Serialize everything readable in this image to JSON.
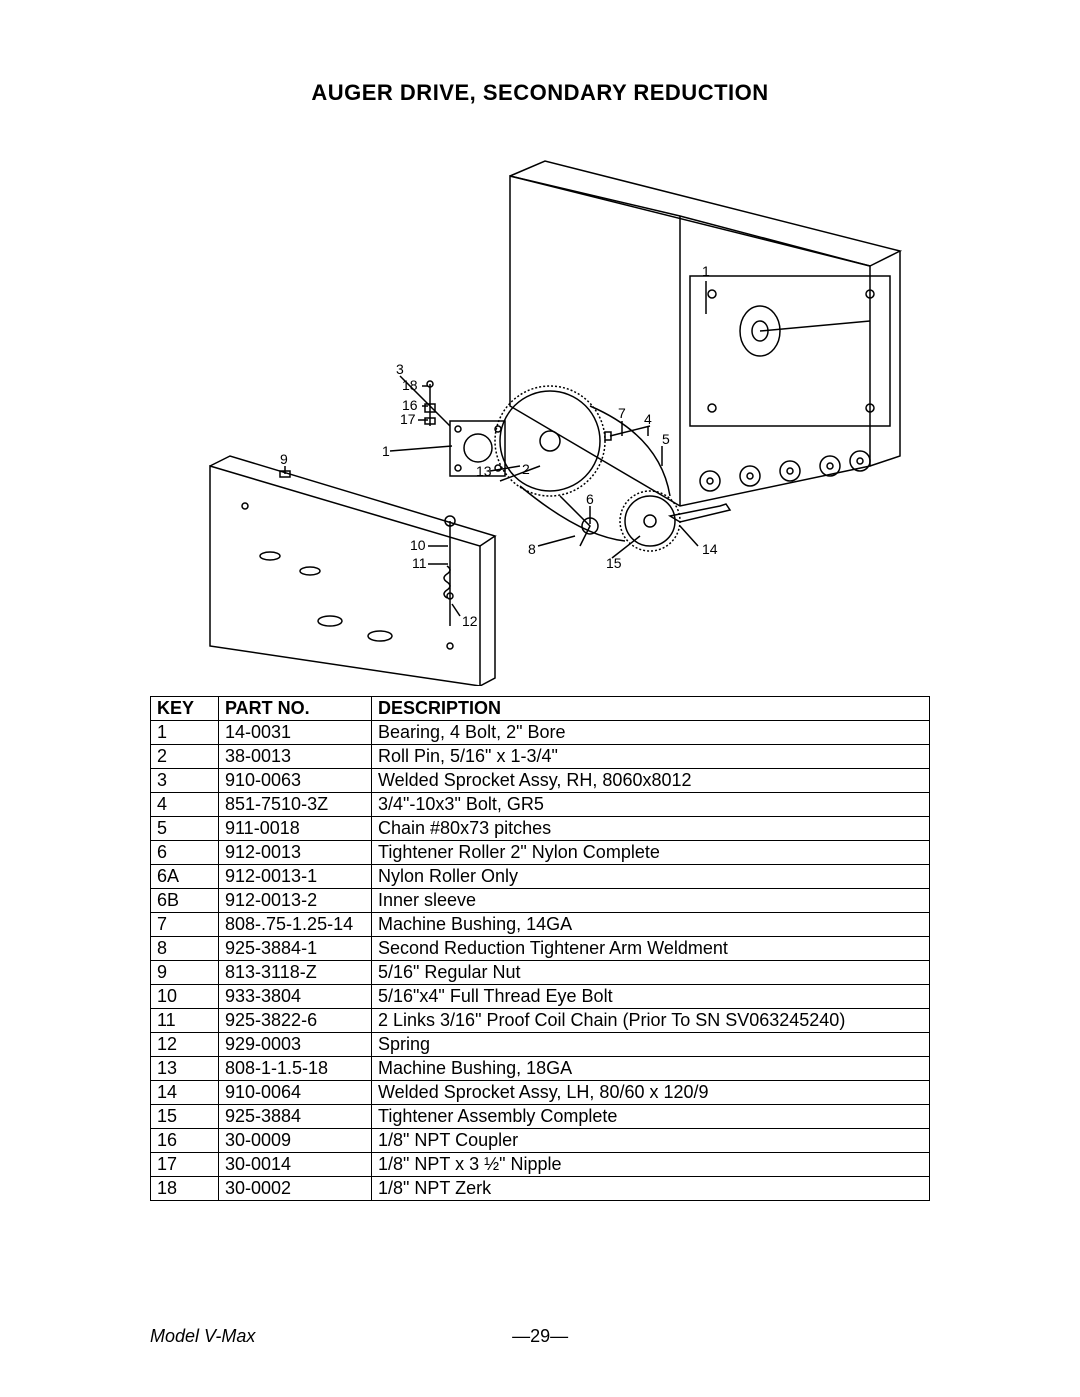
{
  "title": "AUGER DRIVE, SECONDARY REDUCTION",
  "diagram": {
    "callouts": [
      "1",
      "2",
      "3",
      "4",
      "5",
      "6",
      "7",
      "8",
      "9",
      "10",
      "11",
      "12",
      "13",
      "14",
      "15",
      "16",
      "17",
      "18"
    ],
    "stroke": "#000000",
    "stroke_width": 1.5,
    "font_size": 14
  },
  "table": {
    "headers": {
      "key": "KEY",
      "part": "PART NO.",
      "desc": "DESCRIPTION"
    },
    "rows": [
      {
        "key": "1",
        "part": "14-0031",
        "desc": "Bearing, 4 Bolt, 2\" Bore"
      },
      {
        "key": "2",
        "part": "38-0013",
        "desc": "Roll Pin, 5/16\" x 1-3/4\""
      },
      {
        "key": "3",
        "part": "910-0063",
        "desc": "Welded Sprocket Assy, RH, 8060x8012"
      },
      {
        "key": "4",
        "part": "851-7510-3Z",
        "desc": "3/4\"-10x3\" Bolt, GR5"
      },
      {
        "key": "5",
        "part": "911-0018",
        "desc": "Chain #80x73 pitches"
      },
      {
        "key": "6",
        "part": "912-0013",
        "desc": "Tightener Roller 2\" Nylon Complete"
      },
      {
        "key": "6A",
        "part": "912-0013-1",
        "desc": " Nylon Roller Only"
      },
      {
        "key": "6B",
        "part": "912-0013-2",
        "desc": "Inner sleeve"
      },
      {
        "key": "7",
        "part": "808-.75-1.25-14",
        "desc": "Machine Bushing, 14GA"
      },
      {
        "key": "8",
        "part": "925-3884-1",
        "desc": "Second Reduction Tightener Arm Weldment"
      },
      {
        "key": "9",
        "part": "813-3118-Z",
        "desc": "5/16\" Regular Nut"
      },
      {
        "key": "10",
        "part": "933-3804",
        "desc": "5/16\"x4\" Full Thread Eye Bolt"
      },
      {
        "key": "11",
        "part": "925-3822-6",
        "desc": "2 Links 3/16\" Proof Coil Chain (Prior To SN SV063245240)"
      },
      {
        "key": "12",
        "part": "929-0003",
        "desc": "Spring"
      },
      {
        "key": "13",
        "part": "808-1-1.5-18",
        "desc": "Machine Bushing, 18GA"
      },
      {
        "key": "14",
        "part": "910-0064",
        "desc": "Welded Sprocket Assy, LH, 80/60 x 120/9"
      },
      {
        "key": "15",
        "part": "925-3884",
        "desc": "Tightener Assembly Complete"
      },
      {
        "key": "16",
        "part": "30-0009",
        "desc": "1/8\" NPT Coupler"
      },
      {
        "key": "17",
        "part": "30-0014",
        "desc": "1/8\" NPT x 3 ½\" Nipple"
      },
      {
        "key": "18",
        "part": "30-0002",
        "desc": "1/8\" NPT Zerk"
      }
    ]
  },
  "footer": {
    "model": "Model V-Max",
    "page": "—29—"
  }
}
